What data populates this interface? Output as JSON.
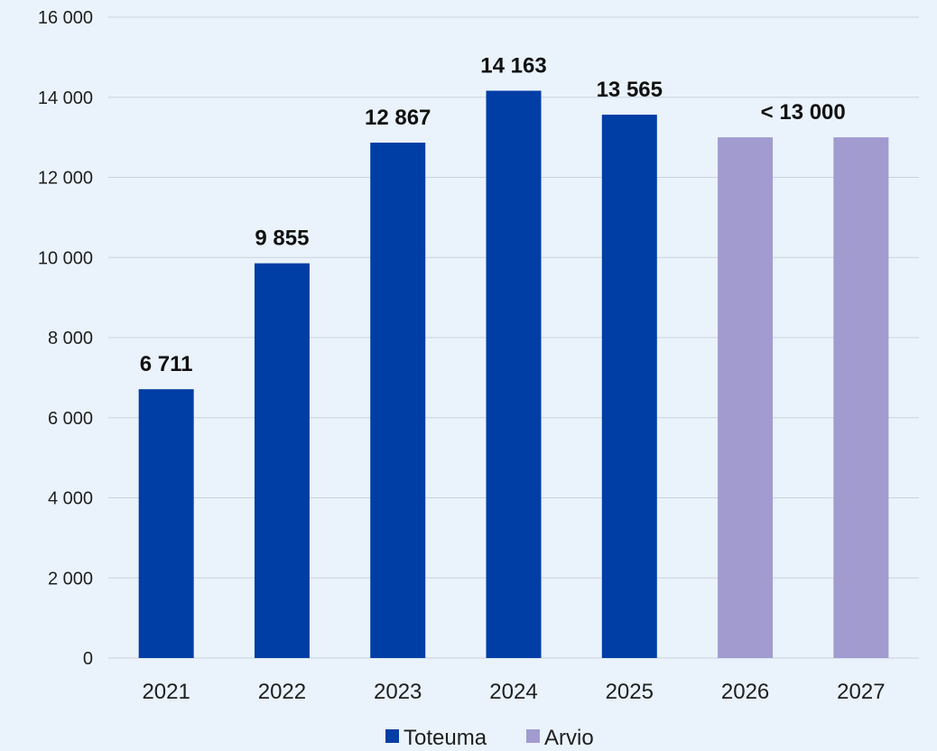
{
  "chart_data": {
    "type": "bar",
    "categories": [
      "2021",
      "2022",
      "2023",
      "2024",
      "2025",
      "2026",
      "2027"
    ],
    "series": [
      {
        "name": "Toteuma",
        "color": "#003da5",
        "values": [
          6711,
          9855,
          12867,
          14163,
          13565,
          null,
          null
        ]
      },
      {
        "name": "Arvio",
        "color": "#a29bd0",
        "values": [
          null,
          null,
          null,
          null,
          null,
          13000,
          13000
        ]
      }
    ],
    "data_labels": [
      {
        "category": "2021",
        "text": "6 711"
      },
      {
        "category": "2022",
        "text": "9 855"
      },
      {
        "category": "2023",
        "text": "12 867"
      },
      {
        "category": "2024",
        "text": "14 163"
      },
      {
        "category": "2025",
        "text": "13 565"
      },
      {
        "category": "2026-2027",
        "text": "< 13 000"
      }
    ],
    "y_ticks": [
      "0",
      "2 000",
      "4 000",
      "6 000",
      "8 000",
      "10 000",
      "12 000",
      "14 000",
      "16 000"
    ],
    "ylim": [
      0,
      16000
    ],
    "grid": true,
    "legend_position": "bottom",
    "title": "",
    "xlabel": "",
    "ylabel": ""
  },
  "legend": {
    "items": [
      {
        "label": "Toteuma",
        "color": "#003da5"
      },
      {
        "label": "Arvio",
        "color": "#a29bd0"
      }
    ]
  }
}
